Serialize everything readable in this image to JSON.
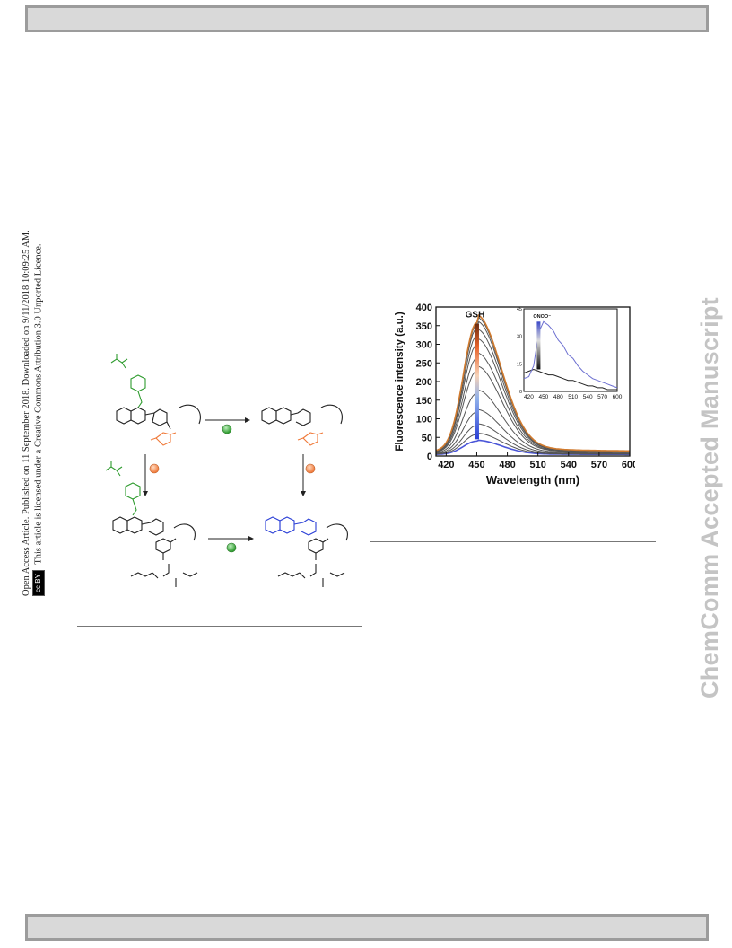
{
  "side_notice": {
    "line1": "Open Access Article. Published on 11 September 2018. Downloaded on 9/11/2018 10:09:25 AM.",
    "line2": "This article is licensed under a Creative Commons Attribution 3.0 Unported Licence.",
    "badge_cc": "cc",
    "badge_by": "BY"
  },
  "watermark": "ChemComm Accepted Manuscript",
  "colors": {
    "header_bar": "#d9d9d9",
    "green": "#2e9b2e",
    "orange": "#f07a3a",
    "blue": "#2a3fd6",
    "gsh_brown": "#c8742c",
    "inset_blue": "#6b6ed0"
  },
  "chart_data": {
    "type": "line",
    "xlabel": "Wavelength (nm)",
    "ylabel": "Fluorescence intensity (a.u.)",
    "xlim": [
      410,
      600
    ],
    "ylim": [
      0,
      400
    ],
    "xticks": [
      420,
      450,
      480,
      510,
      540,
      570,
      600
    ],
    "yticks": [
      0,
      50,
      100,
      150,
      200,
      250,
      300,
      350,
      400
    ],
    "annotation": "GSH",
    "peak_x": 450,
    "curve_peaks": [
      40,
      58,
      82,
      118,
      168,
      228,
      262,
      298,
      322,
      342,
      352,
      358
    ],
    "inset": {
      "annotation": "ONOO⁻",
      "xlim": [
        410,
        600
      ],
      "ylim": [
        0,
        45
      ],
      "xticks": [
        420,
        450,
        480,
        510,
        540,
        570,
        600
      ],
      "yticks": [
        0,
        15,
        30,
        45
      ],
      "series": [
        {
          "x": [
            410,
            420,
            430,
            440,
            450,
            460,
            470,
            480,
            490,
            500,
            510,
            520,
            530,
            540,
            550,
            560,
            570,
            580,
            590,
            600
          ],
          "values": [
            10,
            11,
            12,
            11,
            10,
            9,
            9,
            8,
            7,
            6,
            6,
            5,
            4,
            3,
            3,
            2,
            2,
            1,
            1,
            1
          ]
        },
        {
          "x": [
            410,
            420,
            430,
            440,
            450,
            460,
            470,
            480,
            490,
            500,
            510,
            520,
            530,
            540,
            550,
            560,
            570,
            580,
            590,
            600
          ],
          "values": [
            7,
            8,
            14,
            32,
            38,
            36,
            33,
            28,
            25,
            20,
            18,
            14,
            11,
            9,
            7,
            6,
            5,
            4,
            3,
            2
          ]
        }
      ]
    }
  }
}
